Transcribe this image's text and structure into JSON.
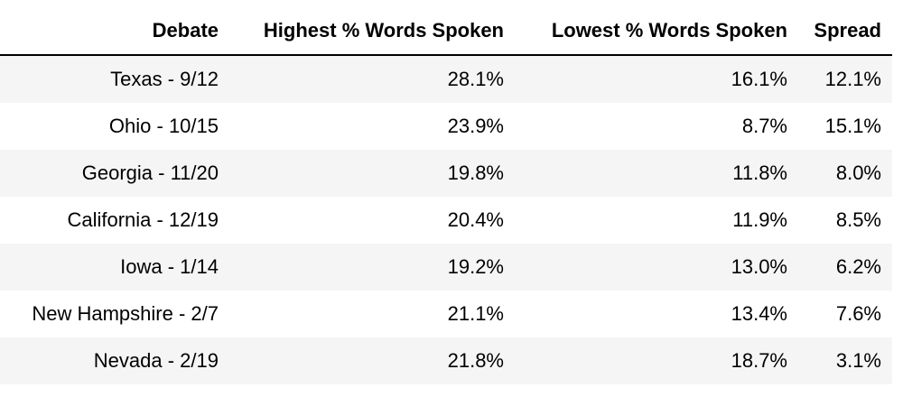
{
  "chart_data": {
    "type": "table",
    "columns": [
      "Debate",
      "Highest % Words Spoken",
      "Lowest % Words Spoken",
      "Spread"
    ],
    "rows": [
      [
        "Texas - 9/12",
        "28.1%",
        "16.1%",
        "12.1%"
      ],
      [
        "Ohio - 10/15",
        "23.9%",
        "8.7%",
        "15.1%"
      ],
      [
        "Georgia - 11/20",
        "19.8%",
        "11.8%",
        "8.0%"
      ],
      [
        "California - 12/19",
        "20.4%",
        "11.9%",
        "8.5%"
      ],
      [
        "Iowa - 1/14",
        "19.2%",
        "13.0%",
        "6.2%"
      ],
      [
        "New Hampshire - 2/7",
        "21.1%",
        "13.4%",
        "7.6%"
      ],
      [
        "Nevada - 2/19",
        "21.8%",
        "18.7%",
        "3.1%"
      ]
    ]
  }
}
